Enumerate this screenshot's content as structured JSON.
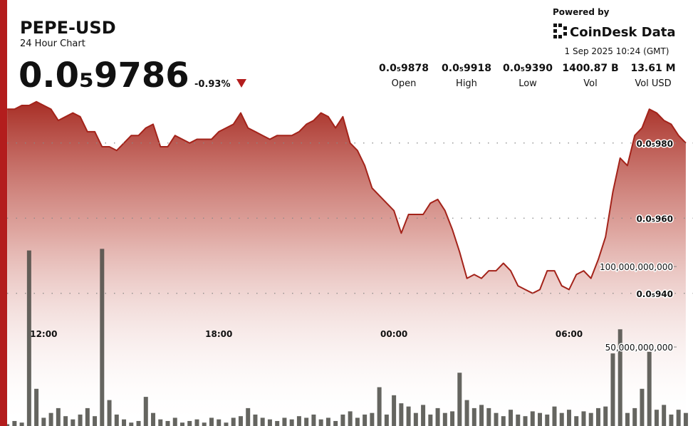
{
  "header": {
    "powered_by": "Powered by",
    "brand": "CoinDesk Data",
    "timestamp": "1 Sep 2025 10:24 (GMT)",
    "price": "0.0₅9786",
    "change": "-0.93%",
    "stats": [
      {
        "value": "0.0₅9878",
        "label": "Open"
      },
      {
        "value": "0.0₅9918",
        "label": "High"
      },
      {
        "value": "0.0₅9390",
        "label": "Low"
      },
      {
        "value": "1400.87 B",
        "label": "Vol"
      },
      {
        "value": "13.61 M",
        "label": "Vol USD"
      }
    ]
  },
  "chart_data": [
    {
      "type": "area",
      "title": "PEPE-USD",
      "subtitle": "24 Hour Chart",
      "color": "#a3231a",
      "grid": true,
      "categories": [
        null,
        null,
        null,
        null,
        null,
        "12:00",
        null,
        null,
        null,
        null,
        null,
        null,
        null,
        null,
        null,
        null,
        null,
        null,
        null,
        null,
        null,
        null,
        null,
        null,
        null,
        null,
        null,
        null,
        null,
        "18:00",
        null,
        null,
        null,
        null,
        null,
        null,
        null,
        null,
        null,
        null,
        null,
        null,
        null,
        null,
        null,
        null,
        null,
        null,
        null,
        null,
        null,
        null,
        null,
        "00:00",
        null,
        null,
        null,
        null,
        null,
        null,
        null,
        null,
        null,
        null,
        null,
        null,
        null,
        null,
        null,
        null,
        null,
        null,
        null,
        null,
        null,
        null,
        null,
        "06:00",
        null,
        null,
        null,
        null,
        null,
        null,
        null,
        null,
        null,
        null,
        null,
        null,
        null,
        null,
        null,
        null
      ],
      "values": [
        9.89e-06,
        9.89e-06,
        9.9e-06,
        9.9e-06,
        9.91e-06,
        9.9e-06,
        9.89e-06,
        9.86e-06,
        9.87e-06,
        9.88e-06,
        9.87e-06,
        9.83e-06,
        9.83e-06,
        9.79e-06,
        9.79e-06,
        9.78e-06,
        9.8e-06,
        9.82e-06,
        9.82e-06,
        9.84e-06,
        9.85e-06,
        9.79e-06,
        9.79e-06,
        9.82e-06,
        9.81e-06,
        9.8e-06,
        9.81e-06,
        9.81e-06,
        9.81e-06,
        9.83e-06,
        9.84e-06,
        9.85e-06,
        9.88e-06,
        9.84e-06,
        9.83e-06,
        9.82e-06,
        9.81e-06,
        9.82e-06,
        9.82e-06,
        9.82e-06,
        9.83e-06,
        9.85e-06,
        9.86e-06,
        9.88e-06,
        9.87e-06,
        9.84e-06,
        9.87e-06,
        9.8e-06,
        9.78e-06,
        9.74e-06,
        9.68e-06,
        9.66e-06,
        9.64e-06,
        9.62e-06,
        9.56e-06,
        9.61e-06,
        9.61e-06,
        9.61e-06,
        9.64e-06,
        9.65e-06,
        9.62e-06,
        9.57e-06,
        9.51e-06,
        9.44e-06,
        9.45e-06,
        9.44e-06,
        9.46e-06,
        9.46e-06,
        9.48e-06,
        9.46e-06,
        9.42e-06,
        9.41e-06,
        9.4e-06,
        9.41e-06,
        9.46e-06,
        9.46e-06,
        9.42e-06,
        9.41e-06,
        9.45e-06,
        9.46e-06,
        9.44e-06,
        9.49e-06,
        9.55e-06,
        9.67e-06,
        9.76e-06,
        9.74e-06,
        9.82e-06,
        9.84e-06,
        9.89e-06,
        9.88e-06,
        9.86e-06,
        9.85e-06,
        9.82e-06,
        9.8e-06
      ],
      "ylim": [
        9.1e-06,
        9.9e-06
      ],
      "yticks": [
        {
          "value": 9.4e-06,
          "label": "0.0₅940"
        },
        {
          "value": 9.6e-06,
          "label": "0.0₅960"
        },
        {
          "value": 9.8e-06,
          "label": "0.0₅980"
        }
      ]
    },
    {
      "type": "bar",
      "color": "#4a4a44",
      "values": [
        2000000000,
        4000000000,
        3000000000,
        110000000000,
        24000000000,
        6000000000,
        9000000000,
        12000000000,
        7000000000,
        5000000000,
        8000000000,
        12000000000,
        7000000000,
        111000000000,
        17000000000,
        8000000000,
        5000000000,
        3000000000,
        4000000000,
        19000000000,
        9000000000,
        5000000000,
        4000000000,
        6000000000,
        3000000000,
        4000000000,
        5000000000,
        3000000000,
        6000000000,
        5000000000,
        3000000000,
        6000000000,
        7000000000,
        12000000000,
        8000000000,
        6000000000,
        5000000000,
        4000000000,
        6000000000,
        5000000000,
        7000000000,
        6000000000,
        8000000000,
        5000000000,
        6000000000,
        4000000000,
        8000000000,
        10000000000,
        6000000000,
        8000000000,
        9000000000,
        25000000000,
        8000000000,
        20000000000,
        15000000000,
        13000000000,
        9000000000,
        14000000000,
        8000000000,
        12000000000,
        9000000000,
        10000000000,
        34000000000,
        17000000000,
        12000000000,
        14000000000,
        12000000000,
        9000000000,
        7000000000,
        11000000000,
        8000000000,
        7000000000,
        10000000000,
        9000000000,
        8000000000,
        13000000000,
        9000000000,
        11000000000,
        7000000000,
        10000000000,
        9000000000,
        12000000000,
        13000000000,
        46000000000,
        61000000000,
        9000000000,
        12000000000,
        24000000000,
        47000000000,
        11000000000,
        14000000000,
        8000000000,
        11000000000,
        9000000000
      ],
      "ylim": [
        0,
        120000000000
      ],
      "yticks": [
        {
          "value": 50000000000,
          "label": "50,000,000,000"
        },
        {
          "value": 100000000000,
          "label": "100,000,000,000"
        }
      ]
    }
  ]
}
